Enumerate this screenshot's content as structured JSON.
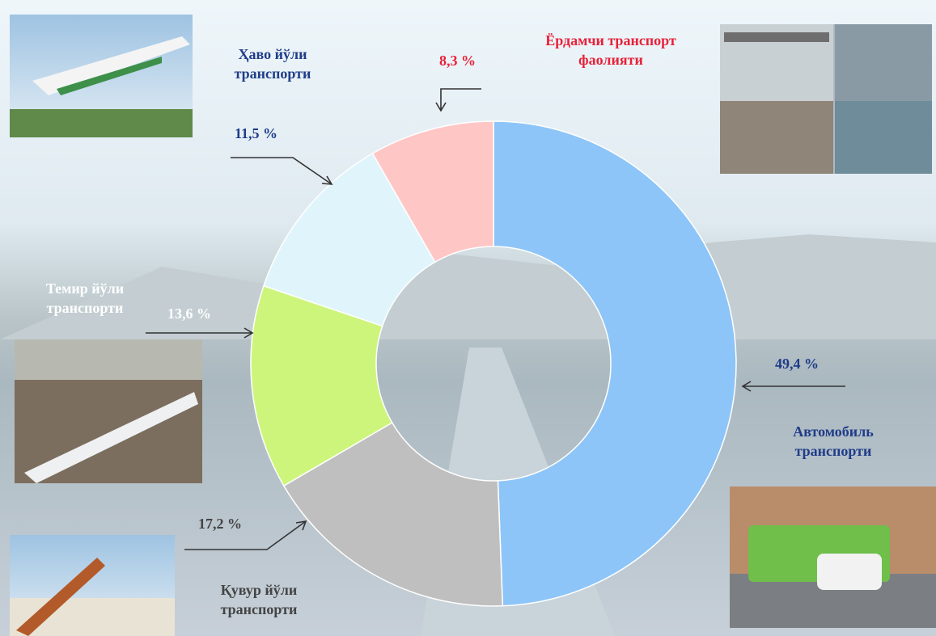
{
  "chart_data": {
    "type": "donut",
    "categories": [
      "Автомобиль транспорти",
      "Қувур йўли транспорти",
      "Темир йўли транспорти",
      "Ҳаво йўли транспорти",
      "Ёрдамчи транспорт фаолияти"
    ],
    "values": [
      49.4,
      17.2,
      13.6,
      11.5,
      8.3
    ],
    "value_labels": [
      "49,4 %",
      "17,2 %",
      "13,6 %",
      "11,5 %",
      "8,3 %"
    ],
    "colors": [
      "#8ec5f8",
      "#bfbfbf",
      "#cdf57c",
      "#dff5fb",
      "#ffc6c6"
    ],
    "label_colors": [
      "#1f3c88",
      "#444444",
      "#ffffff",
      "#1f3c88",
      "#e8213a"
    ]
  }
}
